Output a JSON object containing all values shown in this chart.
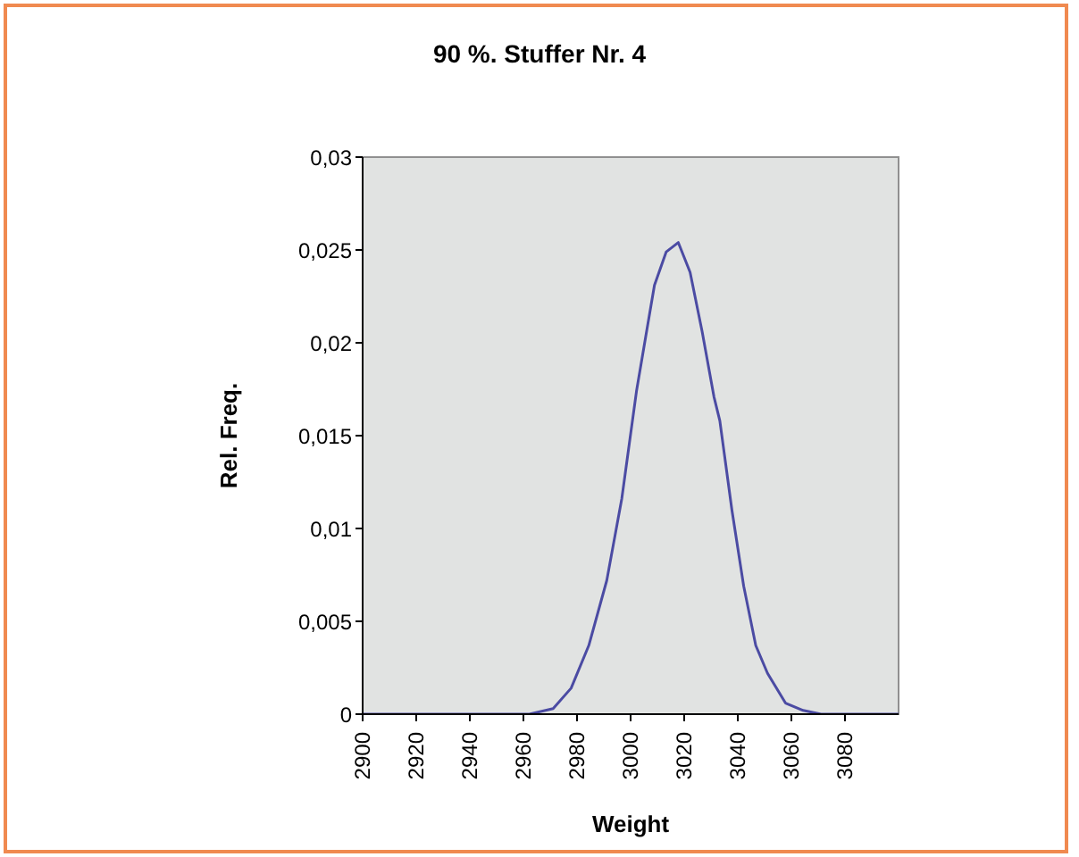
{
  "chart_data": {
    "type": "line",
    "title": "90 %. Stuffer Nr. 4",
    "xlabel": "Weight",
    "ylabel": "Rel. Freq.",
    "x": [
      2900,
      2962.2,
      2971.1,
      2977.8,
      2984.4,
      2991.1,
      2996.7,
      3002.2,
      3005.6,
      3008.9,
      3013.3,
      3017.8,
      3022.2,
      3026.7,
      3031.1,
      3033.3,
      3037.8,
      3042.2,
      3046.7,
      3051.1,
      3057.8,
      3064.4,
      3071.1,
      3100
    ],
    "series": [
      {
        "color": "#4b4ba3",
        "values": [
          0,
          0,
          0.0003,
          0.0014,
          0.0037,
          0.0072,
          0.0116,
          0.0174,
          0.0203,
          0.0231,
          0.0249,
          0.0254,
          0.0238,
          0.0206,
          0.0171,
          0.0158,
          0.011,
          0.0069,
          0.0037,
          0.0022,
          0.0006,
          0.0002,
          0,
          0
        ]
      }
    ],
    "xlim": [
      2900,
      3100
    ],
    "xticks": [
      2900,
      2920,
      2940,
      2960,
      2980,
      3000,
      3020,
      3040,
      3060,
      3080
    ],
    "ylim": [
      0,
      0.03
    ],
    "yticks": [
      0,
      {
        "value": 0.005,
        "label": "0,005"
      },
      {
        "value": 0.01,
        "label": "0,01"
      },
      {
        "value": 0.015,
        "label": "0,015"
      },
      {
        "value": 0.02,
        "label": "0,02"
      },
      {
        "value": 0.025,
        "label": "0,025"
      },
      {
        "value": 0.03,
        "label": "0,03"
      }
    ],
    "legend": false,
    "marker": "none",
    "line_style": "solid"
  }
}
